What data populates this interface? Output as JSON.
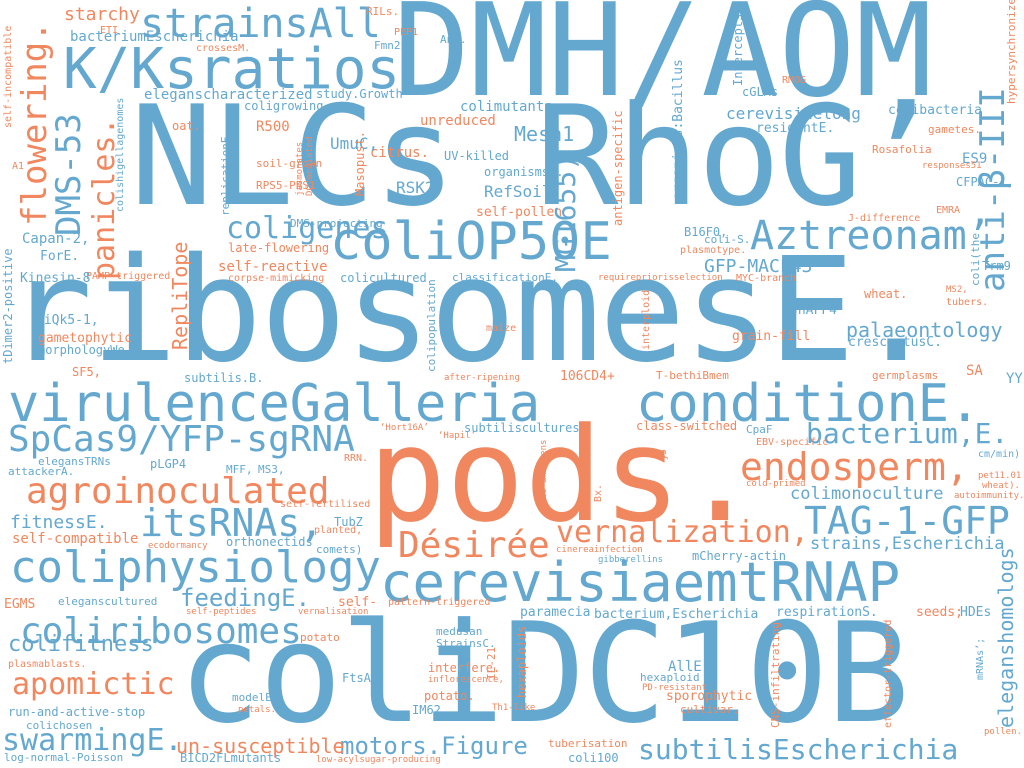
{
  "palette": {
    "blue": "#64a8d0",
    "orange": "#f0875f",
    "background": "#ffffff"
  },
  "words": [
    {
      "id": "dmh-aom",
      "text": "DMH/AOM",
      "color": "blue"
    },
    {
      "id": "nlcs-rhog",
      "text": "NLCs RhoG’",
      "color": "blue"
    },
    {
      "id": "ribosomes",
      "text": "ribosomesE.",
      "color": "blue"
    },
    {
      "id": "pods",
      "text": "pods.",
      "color": "orange"
    },
    {
      "id": "colidc10b",
      "text": "coliDC10B",
      "color": "blue"
    },
    {
      "id": "kksratios",
      "text": "K/Ksratios",
      "color": "blue"
    },
    {
      "id": "colip50e",
      "text": "coliOP50E",
      "color": "blue"
    },
    {
      "id": "virulence",
      "text": "virulenceGalleria",
      "color": "blue"
    },
    {
      "id": "condition",
      "text": "conditionE.",
      "color": "blue"
    },
    {
      "id": "strainsall",
      "text": "strainsAll",
      "color": "blue"
    },
    {
      "id": "spcas9",
      "text": "SpCas9/YFP-sgRNA",
      "color": "blue"
    },
    {
      "id": "cerevisiaemtrnap",
      "text": "cerevisiaemtRNAP",
      "color": "blue"
    },
    {
      "id": "coliphysiology",
      "text": "coliphysiology",
      "color": "blue"
    },
    {
      "id": "aztreonam",
      "text": "Aztreonam’",
      "color": "blue"
    },
    {
      "id": "endosperm",
      "text": "endosperm,",
      "color": "orange"
    },
    {
      "id": "agroinoculated",
      "text": "agroinoculated",
      "color": "orange"
    },
    {
      "id": "itsrnas",
      "text": "itsRNAs,",
      "color": "blue"
    },
    {
      "id": "tag1gfp",
      "text": "TAG-1-GFP",
      "color": "blue"
    },
    {
      "id": "desiree",
      "text": "Désirée",
      "color": "orange"
    },
    {
      "id": "vernalization",
      "text": "vernalization,",
      "color": "orange"
    },
    {
      "id": "coliribosomes",
      "text": "coliribosomes",
      "color": "blue"
    },
    {
      "id": "apomictic",
      "text": "apomictic",
      "color": "orange"
    },
    {
      "id": "swarminge",
      "text": "swarmingE.",
      "color": "blue"
    },
    {
      "id": "subtilisescherichia",
      "text": "subtilisEscherichia",
      "color": "blue"
    },
    {
      "id": "motors-figure",
      "text": "motors.Figure",
      "color": "blue"
    },
    {
      "id": "coligenes",
      "text": "coligenes",
      "color": "blue"
    },
    {
      "id": "bacterium-e",
      "text": "bacterium,E.",
      "color": "blue"
    },
    {
      "id": "dms53",
      "text": "DMS-53",
      "color": "blue"
    },
    {
      "id": "flowering",
      "text": "flowering.",
      "color": "orange"
    },
    {
      "id": "panicles",
      "text": "panicles.",
      "color": "orange"
    },
    {
      "id": "mg1655",
      "text": "MG1655)",
      "color": "blue"
    },
    {
      "id": "anti-beta",
      "text": "anti-β-III",
      "color": "blue"
    },
    {
      "id": "colifitness",
      "text": "colifitness",
      "color": "blue"
    },
    {
      "id": "feedinge",
      "text": "feedingE.",
      "color": "blue"
    },
    {
      "id": "un-susceptible",
      "text": "un-susceptible",
      "color": "orange"
    },
    {
      "id": "palaeontology",
      "text": "palaeontology",
      "color": "blue"
    },
    {
      "id": "colimonoculture",
      "text": "colimonoculture",
      "color": "blue"
    },
    {
      "id": "strains-escherichia",
      "text": "strains,Escherichia",
      "color": "blue"
    },
    {
      "id": "eleganshomologs",
      "text": "eleganshomologs",
      "color": "blue"
    },
    {
      "id": "fitnesse",
      "text": "fitnessE.",
      "color": "blue"
    },
    {
      "id": "mesh1",
      "text": "Mesh1",
      "color": "blue"
    },
    {
      "id": "gfp-macf43",
      "text": "GFP-MACF43",
      "color": "blue"
    },
    {
      "id": "replitope",
      "text": "RepliTope",
      "color": "orange"
    },
    {
      "id": "starchy",
      "text": "starchy",
      "color": "orange"
    },
    {
      "id": "bacteriumescherichia",
      "text": "bacteriumEscherichia",
      "color": "blue"
    },
    {
      "id": "eleganscharacterized",
      "text": "eleganscharacterized",
      "color": "blue"
    },
    {
      "id": "colimutants",
      "text": "colimutants",
      "color": "blue"
    },
    {
      "id": "unreduced",
      "text": "unreduced",
      "color": "orange"
    },
    {
      "id": "citrus",
      "text": "citrus.",
      "color": "orange"
    },
    {
      "id": "umuc",
      "text": "UmuC,",
      "color": "blue"
    },
    {
      "id": "rsk2",
      "text": "RSK2,",
      "color": "blue"
    },
    {
      "id": "refsoil",
      "text": "RefSoil",
      "color": "blue"
    },
    {
      "id": "self-pollen",
      "text": "self-pollen",
      "color": "orange"
    },
    {
      "id": "capan2",
      "text": "Capan-2,",
      "color": "blue"
    },
    {
      "id": "forE",
      "text": "ForE.",
      "color": "blue"
    },
    {
      "id": "kinesin8",
      "text": "Kinesin-8",
      "color": "blue"
    },
    {
      "id": "siqk5",
      "text": "siQk5-1,",
      "color": "blue"
    },
    {
      "id": "gametophytic",
      "text": "gametophytic",
      "color": "orange"
    },
    {
      "id": "morphologywe",
      "text": "morphologyWe",
      "color": "blue"
    },
    {
      "id": "sf5",
      "text": "SF5,",
      "color": "orange"
    },
    {
      "id": "subtilis-b",
      "text": "subtilis.B.",
      "color": "blue"
    },
    {
      "id": "106cd4",
      "text": "106CD4+",
      "color": "orange"
    },
    {
      "id": "t-bethibmem",
      "text": "T-bethiBmem",
      "color": "orange"
    },
    {
      "id": "germplasms",
      "text": "germplasms",
      "color": "orange"
    },
    {
      "id": "sa",
      "text": "SA",
      "color": "orange"
    },
    {
      "id": "yy",
      "text": "YY",
      "color": "blue"
    },
    {
      "id": "crescentusc",
      "text": "crescentusC.",
      "color": "blue"
    },
    {
      "id": "grain-fill",
      "text": "grain-fill",
      "color": "orange"
    },
    {
      "id": "shaff4",
      "text": "shAFF4",
      "color": "blue"
    },
    {
      "id": "trm9",
      "text": "Trm9",
      "color": "blue"
    },
    {
      "id": "wheat",
      "text": "wheat.",
      "color": "orange"
    },
    {
      "id": "colibacteria",
      "text": "colibacteria",
      "color": "blue"
    },
    {
      "id": "es9",
      "text": "ES9",
      "color": "blue"
    },
    {
      "id": "cfpac1",
      "text": "CFPAC-1,",
      "color": "blue"
    },
    {
      "id": "rosafolia",
      "text": "Rosafolia",
      "color": "orange"
    },
    {
      "id": "gametes",
      "text": "gametes.",
      "color": "orange"
    },
    {
      "id": "cerevisiaelong",
      "text": "cerevisiaelong",
      "color": "blue"
    },
    {
      "id": "residente",
      "text": "residentE.",
      "color": "blue"
    },
    {
      "id": "cglms",
      "text": "cGLMs",
      "color": "blue"
    },
    {
      "id": "b16f0",
      "text": "B16F0,",
      "color": "blue"
    },
    {
      "id": "coli-s",
      "text": "coli-S.",
      "color": "blue"
    },
    {
      "id": "organismsb",
      "text": "organismsB.",
      "color": "blue"
    },
    {
      "id": "uv-killed",
      "text": "UV-killed",
      "color": "blue"
    },
    {
      "id": "study-growth",
      "text": "study.Growth",
      "color": "blue"
    },
    {
      "id": "coligrowing",
      "text": "coligrowing",
      "color": "blue"
    },
    {
      "id": "r500",
      "text": "R500",
      "color": "orange"
    },
    {
      "id": "oat",
      "text": "oat.",
      "color": "orange"
    },
    {
      "id": "soil-grown",
      "text": "soil-grown",
      "color": "orange"
    },
    {
      "id": "rps5-pbs1",
      "text": "RPS5-PBS1",
      "color": "orange"
    },
    {
      "id": "self-reactive",
      "text": "self-reactive",
      "color": "orange"
    },
    {
      "id": "late-flowering",
      "text": "late-flowering",
      "color": "orange"
    },
    {
      "id": "dms-projecting",
      "text": "DMS-projecting",
      "color": "blue"
    },
    {
      "id": "coliculturesd",
      "text": "colicultured",
      "color": "blue"
    },
    {
      "id": "classificatione",
      "text": "classificationE.",
      "color": "blue"
    },
    {
      "id": "corpse-mimicking",
      "text": "corpse-mimicking",
      "color": "orange"
    },
    {
      "id": "pamp-triggered",
      "text": "PAMP-triggered",
      "color": "orange"
    },
    {
      "id": "eti",
      "text": "ETI",
      "color": "orange"
    },
    {
      "id": "crossesm",
      "text": "crossesM.",
      "color": "orange"
    },
    {
      "id": "fmn2",
      "text": "Fmn2",
      "color": "blue"
    },
    {
      "id": "pep1",
      "text": "PEP1",
      "color": "orange"
    },
    {
      "id": "rils",
      "text": "RILs.",
      "color": "orange"
    },
    {
      "id": "ane",
      "text": "AnE.",
      "color": "blue"
    },
    {
      "id": "intercepts",
      "text": "Intercepts",
      "color": "blue"
    },
    {
      "id": "rmog",
      "text": "RMOG",
      "color": "orange"
    },
    {
      "id": "hypersynchronized",
      "text": "hypersynchronized",
      "color": "orange"
    },
    {
      "id": "responses51",
      "text": "responses51",
      "color": "orange"
    },
    {
      "id": "emra",
      "text": "EMRA",
      "color": "orange"
    },
    {
      "id": "j-difference",
      "text": "J-difference",
      "color": "orange"
    },
    {
      "id": "ms2",
      "text": "MS2,",
      "color": "orange"
    },
    {
      "id": "tubers",
      "text": "tubers.",
      "color": "orange"
    },
    {
      "id": "myc-branch",
      "text": "MYC-branch",
      "color": "orange"
    },
    {
      "id": "requirepriorisselection",
      "text": "requirepriorisselection",
      "color": "orange"
    },
    {
      "id": "plasmotype",
      "text": "plasmotype.",
      "color": "orange"
    },
    {
      "id": "maize",
      "text": "maize",
      "color": "orange"
    },
    {
      "id": "after-ripening",
      "text": "after-ripening",
      "color": "orange"
    },
    {
      "id": "class-switched",
      "text": "class-switched",
      "color": "orange"
    },
    {
      "id": "cpaf",
      "text": "CpaF",
      "color": "blue"
    },
    {
      "id": "ebv-specific",
      "text": "EBV-specific",
      "color": "orange"
    },
    {
      "id": "cm-min",
      "text": "cm/min)",
      "color": "blue"
    },
    {
      "id": "pet11",
      "text": "pet11.01",
      "color": "orange"
    },
    {
      "id": "wheat2",
      "text": "wheat).",
      "color": "orange"
    },
    {
      "id": "autoimmunity",
      "text": "autoimmunity.",
      "color": "orange"
    },
    {
      "id": "hort16a",
      "text": "‘Hort16A’",
      "color": "orange"
    },
    {
      "id": "hapil",
      "text": "‘Hapil’",
      "color": "orange"
    },
    {
      "id": "subtiliscultures",
      "text": "subtiliscultures",
      "color": "blue"
    },
    {
      "id": "rrn",
      "text": "RRN.",
      "color": "orange"
    },
    {
      "id": "eleganstrns",
      "text": "elegansTRNs",
      "color": "blue"
    },
    {
      "id": "attackera",
      "text": "attackerA.",
      "color": "blue"
    },
    {
      "id": "plgp4",
      "text": "pLGP4",
      "color": "blue"
    },
    {
      "id": "mff",
      "text": "MFF,",
      "color": "blue"
    },
    {
      "id": "ms3",
      "text": "MS3,",
      "color": "blue"
    },
    {
      "id": "self-fertilised",
      "text": "self-fertilised",
      "color": "orange"
    },
    {
      "id": "tubz",
      "text": "TubZ",
      "color": "blue"
    },
    {
      "id": "self-compatible",
      "text": "self-compatible",
      "color": "orange"
    },
    {
      "id": "ecodormancy",
      "text": "ecodormancy",
      "color": "orange"
    },
    {
      "id": "orthonectids",
      "text": "orthonectids",
      "color": "blue"
    },
    {
      "id": "comets",
      "text": "comets)",
      "color": "blue"
    },
    {
      "id": "planted",
      "text": "planted,",
      "color": "orange"
    },
    {
      "id": "cold-primed",
      "text": "cold-primed",
      "color": "orange"
    },
    {
      "id": "cinereainfection",
      "text": "cinereainfection",
      "color": "orange"
    },
    {
      "id": "gibberellins",
      "text": "gibberellins",
      "color": "blue"
    },
    {
      "id": "mcherry-actin",
      "text": "mCherry-actin",
      "color": "blue"
    },
    {
      "id": "egms",
      "text": "EGMS",
      "color": "orange"
    },
    {
      "id": "eleganscultured",
      "text": "eleganscultured",
      "color": "blue"
    },
    {
      "id": "self",
      "text": "self-",
      "color": "orange"
    },
    {
      "id": "self-peptides",
      "text": "self-peptides",
      "color": "orange"
    },
    {
      "id": "vernalisation",
      "text": "vernalisation",
      "color": "orange"
    },
    {
      "id": "pattern-triggered",
      "text": "pattern-triggered",
      "color": "orange"
    },
    {
      "id": "paramecia",
      "text": "paramecia",
      "color": "blue"
    },
    {
      "id": "bacterium-escherichia",
      "text": "bacterium,Escherichia",
      "color": "blue"
    },
    {
      "id": "respirations",
      "text": "respirationS.",
      "color": "blue"
    },
    {
      "id": "seeds",
      "text": "seeds;",
      "color": "orange"
    },
    {
      "id": "hdes",
      "text": "HDEs",
      "color": "blue"
    },
    {
      "id": "potato1",
      "text": "potato",
      "color": "orange"
    },
    {
      "id": "medusan",
      "text": "medusan",
      "color": "blue"
    },
    {
      "id": "strainsc",
      "text": "StrainsC.",
      "color": "blue"
    },
    {
      "id": "plasmablasts",
      "text": "plasmablasts.",
      "color": "orange"
    },
    {
      "id": "ftsaz",
      "text": "FtsAZ",
      "color": "blue"
    },
    {
      "id": "interfere",
      "text": "interfere.",
      "color": "orange"
    },
    {
      "id": "inflorescence",
      "text": "inflorescence,",
      "color": "orange"
    },
    {
      "id": "hexaploid",
      "text": "hexaploid",
      "color": "blue"
    },
    {
      "id": "alle",
      "text": "AllE.",
      "color": "blue"
    },
    {
      "id": "pd-resistant",
      "text": "PD-resistant",
      "color": "orange"
    },
    {
      "id": "potato2",
      "text": "potato.",
      "color": "orange"
    },
    {
      "id": "sporophytic",
      "text": "sporophytic",
      "color": "orange"
    },
    {
      "id": "im62",
      "text": "IM62",
      "color": "blue"
    },
    {
      "id": "cultivar",
      "text": "cultivar.",
      "color": "orange"
    },
    {
      "id": "modele",
      "text": "modelE.",
      "color": "blue"
    },
    {
      "id": "petals",
      "text": "petals.",
      "color": "orange"
    },
    {
      "id": "th1-like",
      "text": "Th1-like",
      "color": "orange"
    },
    {
      "id": "run-and-active-stop",
      "text": "run-and-active-stop",
      "color": "blue"
    },
    {
      "id": "colichosen",
      "text": "colichosen",
      "color": "blue"
    },
    {
      "id": "log-normal-poisson",
      "text": "log-normal-Poisson",
      "color": "blue"
    },
    {
      "id": "bicd2flmutants",
      "text": "BICD2FLmutants",
      "color": "blue"
    },
    {
      "id": "low-acylsugar",
      "text": "low-acylsugar-producing",
      "color": "orange"
    },
    {
      "id": "tuberisation",
      "text": "tuberisation",
      "color": "orange"
    },
    {
      "id": "coli100",
      "text": "coli100",
      "color": "blue"
    },
    {
      "id": "pollen",
      "text": "pollen.",
      "color": "orange"
    },
    {
      "id": "a1",
      "text": "A1",
      "color": "orange"
    },
    {
      "id": "masopust",
      "text": "Masopust.",
      "color": "orange"
    },
    {
      "id": "dc-mediated",
      "text": "DC-mediated",
      "color": "orange"
    },
    {
      "id": "jasmonates",
      "text": "jasmonates",
      "color": "orange"
    },
    {
      "id": "self-incompatible",
      "text": "self-incompatible",
      "color": "orange"
    },
    {
      "id": "colishigellagenomes",
      "text": "colishigellagenomes",
      "color": "blue"
    },
    {
      "id": "replicatione",
      "text": "replicationE.",
      "color": "blue"
    },
    {
      "id": "tdimer2-positive",
      "text": "tDimer2-positive",
      "color": "blue"
    },
    {
      "id": "colipopulation",
      "text": "colipopulation",
      "color": "blue"
    },
    {
      "id": "colithe",
      "text": "coli(the",
      "color": "blue"
    },
    {
      "id": "organisms-bacillus",
      "text": "organisms:Bacillus",
      "color": "blue"
    },
    {
      "id": "antigen-specific",
      "text": "antigen-specific",
      "color": "orange"
    },
    {
      "id": "interploid",
      "text": "interploid",
      "color": "orange"
    },
    {
      "id": "auto-antigens",
      "text": "auto-antigens",
      "color": "orange"
    },
    {
      "id": "il-21",
      "text": "IL-21",
      "color": "orange"
    },
    {
      "id": "hexaploids",
      "text": "hexaploids",
      "color": "orange"
    },
    {
      "id": "y5",
      "text": "y5",
      "color": "orange"
    },
    {
      "id": "bx",
      "text": "Bx.",
      "color": "orange"
    },
    {
      "id": "cns-infiltrating",
      "text": "CNS-infiltrating",
      "color": "orange"
    },
    {
      "id": "effector-triggered",
      "text": "effector-triggered",
      "color": "orange"
    },
    {
      "id": "mrnas",
      "text": "mRNAs’;",
      "color": "blue"
    }
  ]
}
